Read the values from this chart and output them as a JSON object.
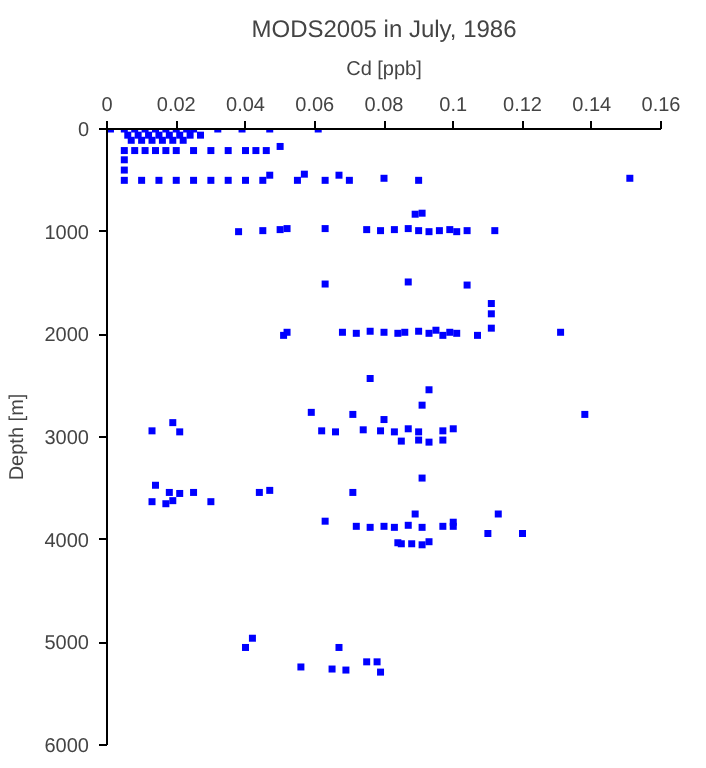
{
  "chart_data": {
    "type": "scatter",
    "title": "MODS2005 in July, 1986",
    "xlabel": "Cd [ppb]",
    "ylabel": "Depth [m]",
    "xlim": [
      0,
      0.16
    ],
    "xticks": [
      0,
      0.02,
      0.04,
      0.06,
      0.08,
      0.1,
      0.12,
      0.14,
      0.16
    ],
    "ylim": [
      6000,
      0
    ],
    "yticks": [
      0,
      1000,
      2000,
      3000,
      4000,
      5000,
      6000
    ],
    "marker": "square",
    "grid": false,
    "series": [
      {
        "color": "#0000ff",
        "x": [
          0.001,
          0.005,
          0.008,
          0.011,
          0.014,
          0.017,
          0.02,
          0.023,
          0.025,
          0.032,
          0.039,
          0.047,
          0.061,
          0.006,
          0.009,
          0.012,
          0.015,
          0.018,
          0.021,
          0.024,
          0.027,
          0.007,
          0.01,
          0.013,
          0.016,
          0.019,
          0.022,
          0.005,
          0.008,
          0.011,
          0.014,
          0.017,
          0.02,
          0.025,
          0.03,
          0.035,
          0.04,
          0.043,
          0.046,
          0.05,
          0.005,
          0.005,
          0.047,
          0.057,
          0.067,
          0.08,
          0.005,
          0.01,
          0.015,
          0.02,
          0.025,
          0.03,
          0.035,
          0.04,
          0.045,
          0.055,
          0.063,
          0.07,
          0.09,
          0.151,
          0.089,
          0.091,
          0.038,
          0.045,
          0.05,
          0.052,
          0.063,
          0.075,
          0.079,
          0.083,
          0.087,
          0.09,
          0.093,
          0.096,
          0.099,
          0.101,
          0.104,
          0.112,
          0.063,
          0.087,
          0.104,
          0.111,
          0.111,
          0.111,
          0.051,
          0.052,
          0.068,
          0.072,
          0.076,
          0.08,
          0.084,
          0.086,
          0.09,
          0.093,
          0.095,
          0.097,
          0.099,
          0.101,
          0.107,
          0.131,
          0.076,
          0.093,
          0.091,
          0.059,
          0.071,
          0.138,
          0.08,
          0.019,
          0.1,
          0.013,
          0.021,
          0.062,
          0.066,
          0.074,
          0.079,
          0.083,
          0.087,
          0.09,
          0.097,
          0.085,
          0.09,
          0.093,
          0.097,
          0.091,
          0.014,
          0.018,
          0.021,
          0.025,
          0.044,
          0.047,
          0.071,
          0.013,
          0.017,
          0.019,
          0.03,
          0.089,
          0.113,
          0.063,
          0.1,
          0.072,
          0.076,
          0.08,
          0.083,
          0.087,
          0.091,
          0.097,
          0.1,
          0.11,
          0.12,
          0.085,
          0.091,
          0.084,
          0.088,
          0.093,
          0.042,
          0.04,
          0.067,
          0.075,
          0.078,
          0.056,
          0.065,
          0.069,
          0.079
        ],
        "values": [
          0,
          0,
          0,
          0,
          0,
          0,
          0,
          0,
          0,
          0,
          0,
          0,
          0,
          60,
          60,
          60,
          60,
          60,
          60,
          60,
          60,
          110,
          110,
          110,
          110,
          110,
          110,
          210,
          210,
          210,
          210,
          210,
          210,
          210,
          210,
          210,
          210,
          210,
          210,
          170,
          300,
          400,
          450,
          440,
          450,
          480,
          500,
          500,
          500,
          500,
          500,
          500,
          500,
          500,
          500,
          500,
          500,
          500,
          500,
          480,
          830,
          820,
          1000,
          990,
          980,
          970,
          970,
          980,
          990,
          980,
          970,
          990,
          1000,
          990,
          980,
          1000,
          990,
          990,
          1510,
          1490,
          1520,
          1700,
          1800,
          1940,
          2010,
          1980,
          1980,
          1990,
          1970,
          1980,
          1990,
          1980,
          1970,
          1990,
          1960,
          2010,
          1980,
          1990,
          2010,
          1980,
          2430,
          2540,
          2690,
          2760,
          2780,
          2780,
          2830,
          2860,
          2920,
          2940,
          2950,
          2940,
          2950,
          2930,
          2940,
          2950,
          2920,
          2950,
          2940,
          3040,
          3030,
          3050,
          3030,
          3400,
          3470,
          3540,
          3550,
          3540,
          3540,
          3520,
          3540,
          3630,
          3650,
          3620,
          3630,
          3750,
          3750,
          3820,
          3830,
          3870,
          3880,
          3870,
          3880,
          3860,
          3880,
          3870,
          3870,
          3940,
          3940,
          4040,
          4050,
          4030,
          4040,
          4020,
          4960,
          5050,
          5050,
          5190,
          5190,
          5240,
          5260,
          5270,
          5290
        ]
      }
    ]
  }
}
